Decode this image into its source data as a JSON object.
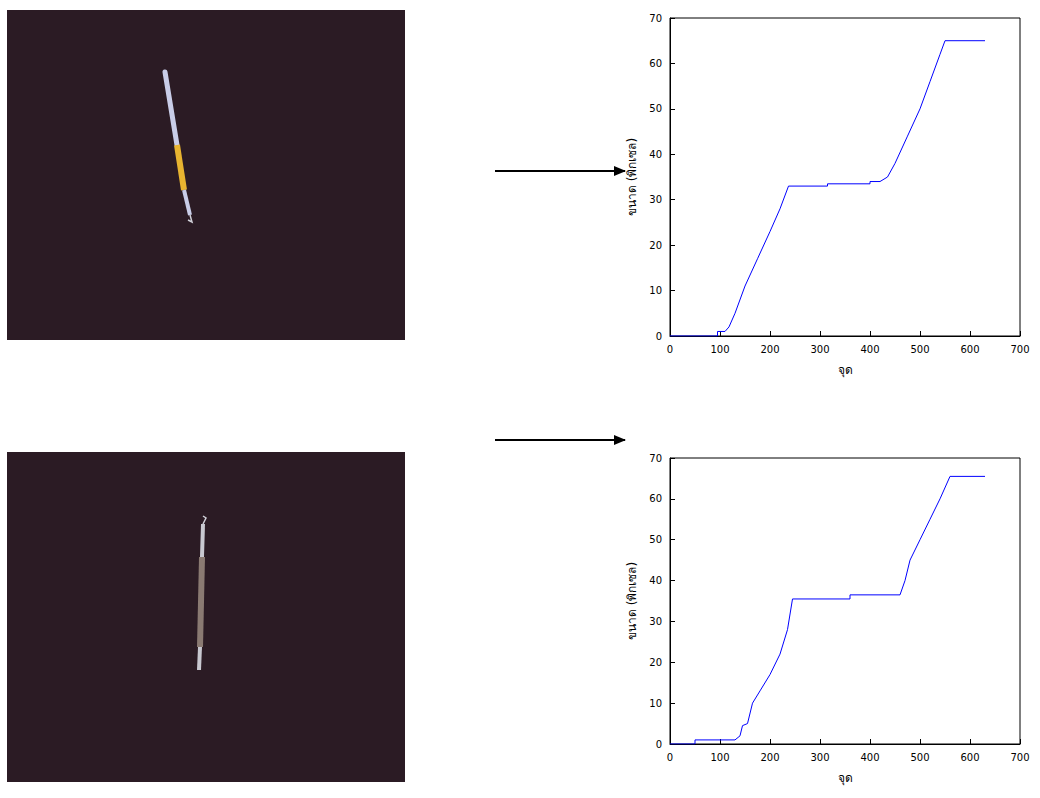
{
  "chart_data": [
    {
      "type": "line",
      "x_label": "จุด",
      "y_label": "ขนาด (พิกเซล)",
      "x": [
        0,
        95,
        95,
        110,
        118,
        130,
        150,
        175,
        200,
        220,
        237,
        315,
        315,
        400,
        400,
        420,
        435,
        450,
        475,
        500,
        520,
        540,
        550,
        630
      ],
      "values": [
        0,
        0,
        1,
        1,
        2,
        5,
        11,
        17,
        23,
        28,
        33,
        33,
        33.5,
        33.5,
        34,
        34,
        35,
        38,
        44,
        50,
        56,
        62,
        65,
        65
      ],
      "color": "#0000ff",
      "xlim": [
        0,
        700
      ],
      "xticks": [
        0,
        100,
        200,
        300,
        400,
        500,
        600,
        700
      ],
      "ylim": [
        0,
        70
      ],
      "yticks": [
        0,
        10,
        20,
        30,
        40,
        50,
        60,
        70
      ],
      "grid": false
    },
    {
      "type": "line",
      "x_label": "จุด",
      "y_label": "ขนาด (พิกเซล)",
      "x": [
        0,
        50,
        50,
        130,
        140,
        145,
        155,
        165,
        180,
        200,
        220,
        235,
        245,
        360,
        360,
        460,
        470,
        480,
        500,
        520,
        540,
        560,
        630
      ],
      "values": [
        0,
        0,
        1,
        1,
        2,
        4.5,
        5,
        10,
        13,
        17,
        22,
        28,
        35.5,
        35.5,
        36.5,
        36.5,
        40,
        45,
        50,
        55,
        60,
        65.5,
        65.5
      ],
      "color": "#0000ff",
      "xlim": [
        0,
        700
      ],
      "xticks": [
        0,
        100,
        200,
        300,
        400,
        500,
        600,
        700
      ],
      "ylim": [
        0,
        70
      ],
      "yticks": [
        0,
        10,
        20,
        30,
        40,
        50,
        60,
        70
      ],
      "grid": false
    }
  ]
}
